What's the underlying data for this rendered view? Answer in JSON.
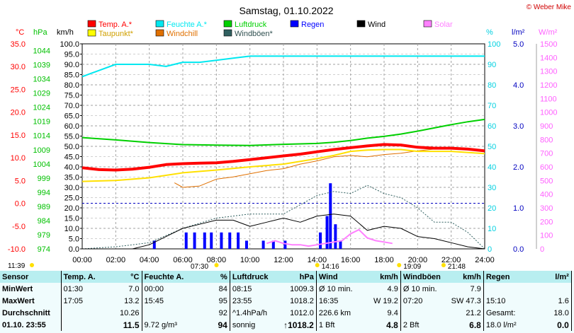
{
  "chart_data": {
    "type": "line",
    "title": "Samstag, 01.10.2022",
    "watermark": "© Weber Mike",
    "legend": [
      {
        "label": "Temp. A.*",
        "color": "#ff0000"
      },
      {
        "label": "Feuchte A.*",
        "color": "#00e8f0"
      },
      {
        "label": "Luftdruck",
        "color": "#00d000"
      },
      {
        "label": "Regen",
        "color": "#0000ff"
      },
      {
        "label": "Wind",
        "color": "#000000"
      },
      {
        "label": "Solar",
        "color": "#ff80ff"
      },
      {
        "label": "Taupunkt*",
        "color": "#ffff00"
      },
      {
        "label": "Windchill",
        "color": "#e07000"
      },
      {
        "label": "Windböen*",
        "color": "#306060"
      }
    ],
    "axes": {
      "temp": {
        "unit": "°C",
        "color": "#ff0000",
        "ticks": [
          "35.0",
          "30.0",
          "25.0",
          "20.0",
          "15.0",
          "10.0",
          "5.0",
          "0.0",
          "-5.0",
          "-10.0"
        ]
      },
      "pressure": {
        "unit": "hPa",
        "color": "#00c000",
        "ticks": [
          "1044",
          "1039",
          "1034",
          "1029",
          "1024",
          "1019",
          "1014",
          "1009",
          "1004",
          "999",
          "994",
          "989",
          "984",
          "979",
          "974"
        ]
      },
      "wind": {
        "unit": "km/h",
        "color": "#000000",
        "ticks": [
          "100.0",
          "95.0",
          "90.0",
          "85.0",
          "80.0",
          "75.0",
          "70.0",
          "65.0",
          "60.0",
          "55.0",
          "50.0",
          "45.0",
          "40.0",
          "35.0",
          "30.0",
          "25.0",
          "20.0",
          "15.0",
          "10.0",
          "5.0",
          "0.0"
        ]
      },
      "humidity": {
        "unit": "%",
        "color": "#00d0e0",
        "ticks": [
          "100",
          "90",
          "80",
          "70",
          "60",
          "50",
          "40",
          "30",
          "20",
          "10",
          "0"
        ]
      },
      "rain": {
        "unit": "l/m²",
        "color": "#0000c0",
        "ticks": [
          "5.0",
          "4.0",
          "3.0",
          "2.0",
          "1.0",
          "0.0"
        ]
      },
      "solar": {
        "unit": "W/m²",
        "color": "#ff60ff",
        "ticks": [
          "1500",
          "1400",
          "1300",
          "1200",
          "1100",
          "1000",
          "900",
          "800",
          "700",
          "600",
          "500",
          "400",
          "300",
          "200",
          "100",
          "0"
        ]
      },
      "x": {
        "ticks": [
          "00:00",
          "02:00",
          "04:00",
          "06:00",
          "08:00",
          "10:00",
          "12:00",
          "14:00",
          "16:00",
          "18:00",
          "20:00",
          "22:00",
          "24:00"
        ],
        "range_hours": [
          0,
          24
        ]
      }
    },
    "sun_events": [
      {
        "label": "11:39",
        "hour": 0
      },
      {
        "label": "07:30",
        "hour": 7.5
      },
      {
        "label": "14:16",
        "hour": 14.27
      },
      {
        "label": "19:09",
        "hour": 19.15
      },
      {
        "label": "21:48",
        "hour": 21.8
      }
    ],
    "series": [
      {
        "name": "Temp. A.*",
        "unit": "°C",
        "x": [
          0,
          1,
          2,
          3,
          4,
          5,
          6,
          7,
          8,
          9,
          10,
          11,
          12,
          13,
          14,
          15,
          16,
          17,
          18,
          19,
          20,
          21,
          22,
          23,
          24
        ],
        "values": [
          7.8,
          7.4,
          7.3,
          7.5,
          7.9,
          8.5,
          8.7,
          8.8,
          8.9,
          9.2,
          9.6,
          10.0,
          10.4,
          10.8,
          11.3,
          11.8,
          12.2,
          12.6,
          12.9,
          12.8,
          12.3,
          12.1,
          12.1,
          11.9,
          11.5
        ]
      },
      {
        "name": "Taupunkt*",
        "unit": "°C",
        "x": [
          0,
          2,
          4,
          6,
          8,
          10,
          12,
          14,
          15,
          16,
          17,
          18,
          19,
          20,
          22,
          24
        ],
        "values": [
          4.8,
          5.0,
          5.6,
          6.7,
          7.3,
          8.0,
          8.6,
          9.8,
          10.5,
          11.4,
          11.7,
          11.8,
          11.8,
          11.4,
          11.4,
          10.9
        ]
      },
      {
        "name": "Windchill",
        "unit": "°C",
        "x": [
          5.5,
          6,
          7,
          8,
          9,
          10,
          11,
          12,
          13,
          14,
          15,
          16,
          17,
          18,
          19,
          20,
          21,
          22,
          23,
          24
        ],
        "values": [
          4.5,
          3.5,
          3.8,
          5.3,
          5.8,
          6.5,
          7.2,
          7.6,
          8.6,
          9.3,
          10.2,
          10.5,
          10.2,
          10.7,
          11.0,
          11.5,
          11.9,
          12.0,
          11.8,
          11.5
        ]
      },
      {
        "name": "Feuchte A.*",
        "unit": "%",
        "x": [
          0,
          1,
          2,
          3,
          4,
          5,
          6,
          7,
          8,
          9,
          10,
          11,
          12,
          13,
          14,
          15,
          16,
          17,
          18,
          19,
          20,
          21,
          22,
          23,
          24
        ],
        "values": [
          84,
          87,
          90,
          90,
          90,
          89,
          91,
          91,
          92,
          93,
          94,
          94,
          94,
          94,
          94,
          94,
          94,
          94,
          94,
          94,
          94,
          94,
          94,
          94,
          94
        ]
      },
      {
        "name": "Luftdruck",
        "unit": "hPa",
        "x": [
          0,
          2,
          4,
          6,
          8,
          10,
          12,
          14,
          15,
          16,
          17,
          18,
          19,
          20,
          21,
          22,
          23,
          24
        ],
        "values": [
          1012.0,
          1011.2,
          1010.3,
          1009.6,
          1009.4,
          1009.3,
          1009.7,
          1010.0,
          1010.4,
          1011.0,
          1011.8,
          1012.4,
          1013.2,
          1014.2,
          1015.3,
          1016.4,
          1017.4,
          1018.2
        ]
      },
      {
        "name": "Wind",
        "unit": "km/h",
        "x": [
          0,
          1,
          2,
          3,
          4,
          5,
          6,
          7,
          8,
          9,
          10,
          11,
          12,
          13,
          14,
          15,
          16,
          17,
          18,
          19,
          20,
          21,
          22,
          23,
          24
        ],
        "values": [
          0,
          0,
          0,
          0,
          2,
          6,
          10,
          12,
          14,
          14,
          11,
          13,
          15,
          13,
          16,
          17,
          16,
          9,
          11,
          10,
          6,
          5,
          3,
          1,
          0
        ]
      },
      {
        "name": "Windböen*",
        "unit": "km/h",
        "x": [
          0,
          2,
          4,
          6,
          8,
          10,
          12,
          14,
          15,
          16,
          17,
          18,
          19,
          20,
          21,
          22,
          23,
          24
        ],
        "values": [
          0,
          1,
          3,
          10,
          15,
          17,
          17,
          26,
          28,
          27,
          31,
          27,
          25,
          20,
          13,
          13,
          8,
          0
        ]
      },
      {
        "name": "Regen",
        "unit": "l/m²",
        "x": [
          4.3,
          6.2,
          6.7,
          7.3,
          7.7,
          8.3,
          8.8,
          9.3,
          9.8,
          10.8,
          11.4,
          12.1,
          14.2,
          14.6,
          14.8,
          15.1,
          15.4
        ],
        "values": [
          0.2,
          0.4,
          0.4,
          0.4,
          0.4,
          0.4,
          0.4,
          0.4,
          0.2,
          0.2,
          0.2,
          0.2,
          0.4,
          0.8,
          1.6,
          0.6,
          0.2
        ]
      },
      {
        "name": "Solar",
        "unit": "W/m²",
        "x": [
          11.0,
          11.5,
          12.0,
          12.5,
          13.0,
          13.5,
          14.0,
          14.5,
          15.0,
          15.5,
          16.0,
          16.5,
          17.0,
          17.5,
          18.0,
          18.5
        ],
        "values": [
          40,
          60,
          40,
          30,
          30,
          20,
          30,
          40,
          50,
          60,
          110,
          140,
          80,
          60,
          50,
          40
        ]
      }
    ]
  },
  "stats": {
    "headers": [
      "Sensor",
      "Temp. A.",
      "°C",
      "Feuchte A.",
      "%",
      "Luftdruck",
      "hPa",
      "Wind",
      "km/h",
      "Windböen",
      "km/h",
      "Regen",
      "l/m²"
    ],
    "rows": [
      {
        "label": "MinWert",
        "temp_time": "01:30",
        "temp": "7.0",
        "hum_time": "00:00",
        "hum": "84",
        "press_time": "08:15",
        "press": "1009.3",
        "wind_desc": "Ø 10 min.",
        "wind": "4.9",
        "gust_desc": "Ø 10 min.",
        "gust": "7.9",
        "rain_desc": "",
        "rain": ""
      },
      {
        "label": "MaxWert",
        "temp_time": "17:05",
        "temp": "13.2",
        "hum_time": "15:45",
        "hum": "95",
        "press_time": "23:55",
        "press": "1018.2",
        "wind_desc": "16:35",
        "wind": "W 19.2",
        "gust_desc": "07:20",
        "gust": "SW 47.3",
        "rain_desc": "15:10",
        "rain": "1.6"
      },
      {
        "label": "Durchschnitt",
        "temp_time": "",
        "temp": "10.26",
        "hum_time": "",
        "hum": "92",
        "press_time": "^1.4hPa/h",
        "press": "1012.0",
        "wind_desc": "226.6 km",
        "wind": "9.4",
        "gust_desc": "",
        "gust": "21.2",
        "rain_desc": "Gesamt:",
        "rain": "18.0"
      },
      {
        "label": "01.10. 23:55",
        "temp_time": "",
        "temp": "11.5",
        "hum_time": "9.72 g/m³",
        "hum": "94",
        "press_time": "sonnig",
        "press": "↑1018.2",
        "wind_desc": "1 Bft",
        "wind": "4.8",
        "gust_desc": "2 Bft",
        "gust": "6.8",
        "rain_desc": "18.0 l/m²",
        "rain": "0.0"
      }
    ]
  }
}
